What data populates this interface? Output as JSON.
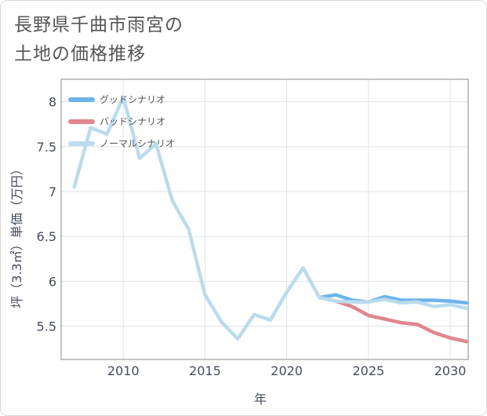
{
  "chart_data": {
    "type": "line",
    "title_lines": [
      "長野県千曲市雨宮の",
      "土地の価格推移"
    ],
    "xlabel": "年",
    "ylabel": "坪（3.3㎡）単価（万円）",
    "xlim": [
      2006.2,
      2031.1
    ],
    "ylim": [
      5.13,
      8.25
    ],
    "x_ticks": [
      2010,
      2015,
      2020,
      2025,
      2030
    ],
    "y_ticks": [
      5.5,
      6,
      6.5,
      7,
      7.5,
      8
    ],
    "x_tick_labels": [
      "2010",
      "2015",
      "2020",
      "2025",
      "2030"
    ],
    "y_tick_labels": [
      "5.5",
      "6",
      "6.5",
      "7",
      "7.5",
      "8"
    ],
    "legend_position": "top-left",
    "series": [
      {
        "name": "グッドシナリオ",
        "color": "#6cb4ea",
        "x": [
          2022,
          2023,
          2024,
          2025,
          2026,
          2027,
          2028,
          2029,
          2030,
          2031
        ],
        "values": [
          5.82,
          5.85,
          5.79,
          5.77,
          5.83,
          5.79,
          5.79,
          5.79,
          5.78,
          5.76
        ]
      },
      {
        "name": "バッドシナリオ",
        "color": "#e0868e",
        "x": [
          2022,
          2023,
          2024,
          2025,
          2026,
          2027,
          2028,
          2029,
          2030,
          2031
        ],
        "values": [
          5.82,
          5.78,
          5.72,
          5.62,
          5.58,
          5.54,
          5.52,
          5.43,
          5.37,
          5.33
        ]
      },
      {
        "name": "ノーマルシナリオ",
        "color": "#badcec",
        "x": [
          2007,
          2008,
          2009,
          2010,
          2011,
          2012,
          2013,
          2014,
          2015,
          2016,
          2017,
          2018,
          2019,
          2020,
          2021,
          2022,
          2023,
          2024,
          2025,
          2026,
          2027,
          2028,
          2029,
          2030,
          2031
        ],
        "values": [
          7.05,
          7.71,
          7.64,
          8.05,
          7.37,
          7.53,
          6.9,
          6.58,
          5.85,
          5.55,
          5.36,
          5.63,
          5.57,
          5.88,
          6.15,
          5.82,
          5.78,
          5.77,
          5.77,
          5.8,
          5.76,
          5.77,
          5.72,
          5.74,
          5.7
        ]
      }
    ]
  }
}
